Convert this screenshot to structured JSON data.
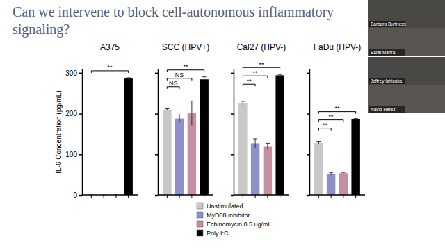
{
  "chart_data": {
    "type": "bar",
    "title": "Can we intervene to block cell-autonomous inflammatory signaling?",
    "y_label": "IL-6 Concentration (pg/mL)",
    "categories": [
      "A375",
      "SCC (HPV+)",
      "Cal27 (HPV-)",
      "FaDu (HPV-)"
    ],
    "series": [
      {
        "name": "Unstimulated",
        "color": "#c8c8c8",
        "values": [
          0,
          210,
          225,
          128
        ],
        "errors": [
          0,
          2,
          5,
          4
        ]
      },
      {
        "name": "MyD88 inhibitor",
        "color": "#8f8fc9",
        "values": [
          0,
          188,
          127,
          53
        ],
        "errors": [
          0,
          9,
          11,
          3
        ]
      },
      {
        "name": "Echinomycin 0.5 ug/ml",
        "color": "#c4909e",
        "values": [
          0,
          201,
          120,
          54
        ],
        "errors": [
          0,
          30,
          7,
          2
        ]
      },
      {
        "name": "Poly I:C",
        "color": "#000000",
        "values": [
          286,
          284,
          294,
          186
        ],
        "errors": [
          2,
          6,
          2,
          2
        ]
      }
    ],
    "significance": [
      [
        {
          "pair": [
            "Unstimulated",
            "Poly I:C"
          ],
          "label": "**"
        }
      ],
      [
        {
          "pair": [
            "Unstimulated",
            "MyD88 inhibitor"
          ],
          "label": "NS"
        },
        {
          "pair": [
            "Unstimulated",
            "Echinomycin 0.5 ug/ml"
          ],
          "label": "NS"
        },
        {
          "pair": [
            "Unstimulated",
            "Poly I:C"
          ],
          "label": "**"
        }
      ],
      [
        {
          "pair": [
            "Unstimulated",
            "MyD88 inhibitor"
          ],
          "label": "**"
        },
        {
          "pair": [
            "Unstimulated",
            "Echinomycin 0.5 ug/ml"
          ],
          "label": "**"
        },
        {
          "pair": [
            "Unstimulated",
            "Poly I:C"
          ],
          "label": "**"
        }
      ],
      [
        {
          "pair": [
            "Unstimulated",
            "MyD88 inhibitor"
          ],
          "label": "**"
        },
        {
          "pair": [
            "Unstimulated",
            "Echinomycin 0.5 ug/ml"
          ],
          "label": "**"
        },
        {
          "pair": [
            "Unstimulated",
            "Poly I:C"
          ],
          "label": "**"
        }
      ]
    ],
    "ylim": [
      0,
      310
    ],
    "yticks": [
      0,
      100,
      200,
      300
    ],
    "legend": "bottom"
  },
  "participants": [
    "Barbara Burtness",
    "Saral Mehra",
    "Jeffrey Ishizuka",
    "Navid Hafez"
  ]
}
